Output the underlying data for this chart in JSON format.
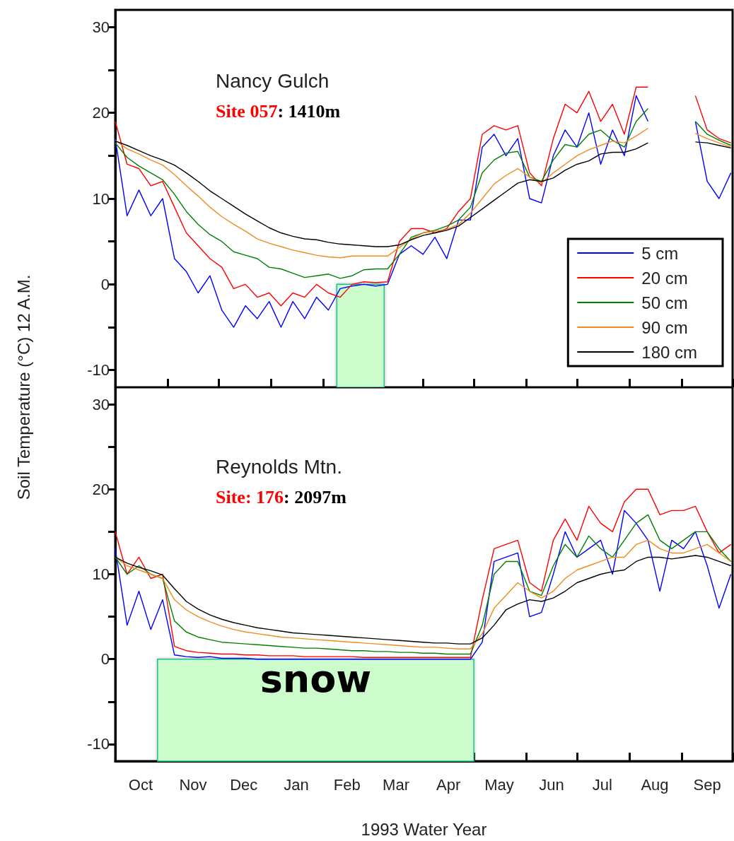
{
  "chart_data": [
    {
      "type": "line",
      "ylabel": "Soil Temperature (°C) 12 A.M.",
      "annotations": [
        "Nancy Gulch",
        "Site 057: 1410m"
      ],
      "x": [
        "1992-10-01",
        "1992-10-08",
        "1992-10-15",
        "1992-10-22",
        "1992-10-29",
        "1992-11-05",
        "1992-11-12",
        "1992-11-19",
        "1992-11-26",
        "1992-12-03",
        "1992-12-10",
        "1992-12-17",
        "1992-12-24",
        "1992-12-31",
        "1993-01-07",
        "1993-01-14",
        "1993-01-21",
        "1993-01-28",
        "1993-02-04",
        "1993-02-11",
        "1993-02-18",
        "1993-02-25",
        "1993-03-04",
        "1993-03-11",
        "1993-03-18",
        "1993-03-25",
        "1993-04-01",
        "1993-04-08",
        "1993-04-15",
        "1993-04-22",
        "1993-04-29",
        "1993-05-06",
        "1993-05-13",
        "1993-05-20",
        "1993-05-27",
        "1993-06-03",
        "1993-06-10",
        "1993-06-17",
        "1993-06-24",
        "1993-07-01",
        "1993-07-08",
        "1993-07-15",
        "1993-07-22",
        "1993-07-29",
        "1993-08-05",
        "1993-08-12",
        "1993-08-19",
        "1993-08-26",
        "1993-09-02",
        "1993-09-09",
        "1993-09-16",
        "1993-09-23",
        "1993-09-30"
      ],
      "series": [
        {
          "name": "5 cm",
          "color": "#0000ff",
          "values": [
            17.0,
            8.0,
            11.0,
            8.0,
            10.0,
            3.0,
            1.5,
            -1.0,
            1.0,
            -3.0,
            -5.0,
            -2.5,
            -4.0,
            -2.0,
            -5.0,
            -2.0,
            -4.0,
            -1.5,
            -3.0,
            -0.5,
            -0.2,
            0.0,
            -0.2,
            0.0,
            3.5,
            4.5,
            3.5,
            5.5,
            3.0,
            7.5,
            7.5,
            16.0,
            17.5,
            15.0,
            17.0,
            10.0,
            9.5,
            15.0,
            18.0,
            16.0,
            20.0,
            14.0,
            18.0,
            15.0,
            22.0,
            19.0,
            null,
            null,
            null,
            19.0,
            12.0,
            10.0,
            13.0
          ]
        },
        {
          "name": "20 cm",
          "color": "#ff0000",
          "values": [
            19.0,
            14.0,
            13.5,
            11.5,
            12.0,
            9.0,
            6.0,
            4.5,
            3.0,
            2.0,
            -0.5,
            0.0,
            -1.5,
            -1.0,
            -2.5,
            -1.0,
            -1.5,
            0.0,
            -1.0,
            -1.5,
            0.0,
            0.3,
            0.2,
            0.3,
            5.0,
            6.5,
            6.5,
            6.0,
            6.5,
            8.5,
            10.0,
            17.5,
            18.5,
            18.0,
            18.5,
            13.0,
            11.5,
            17.0,
            21.0,
            20.0,
            22.5,
            19.0,
            21.0,
            17.5,
            23.0,
            23.0,
            null,
            null,
            null,
            22.0,
            18.0,
            17.0,
            16.5
          ]
        },
        {
          "name": "50 cm",
          "color": "#008000",
          "values": [
            16.5,
            14.8,
            13.8,
            13.0,
            12.2,
            10.5,
            8.5,
            7.0,
            5.8,
            5.0,
            3.8,
            3.4,
            3.0,
            2.0,
            1.8,
            1.3,
            0.8,
            1.0,
            1.2,
            0.7,
            1.0,
            1.7,
            1.8,
            1.8,
            3.5,
            5.5,
            6.0,
            6.3,
            6.8,
            7.5,
            9.0,
            13.0,
            14.5,
            15.3,
            15.5,
            12.5,
            12.0,
            14.5,
            16.3,
            16.0,
            17.5,
            18.0,
            16.8,
            16.0,
            19.0,
            20.5,
            null,
            null,
            null,
            19.0,
            17.5,
            16.8,
            16.2
          ]
        },
        {
          "name": "90 cm",
          "color": "#f08c1e",
          "values": [
            16.8,
            15.8,
            15.2,
            14.5,
            13.9,
            12.8,
            11.5,
            10.3,
            9.0,
            7.9,
            7.0,
            6.2,
            5.3,
            4.8,
            4.4,
            4.0,
            3.7,
            3.4,
            3.2,
            3.1,
            3.3,
            3.3,
            3.3,
            3.3,
            4.3,
            5.3,
            6.0,
            6.2,
            6.4,
            7.0,
            8.3,
            10.0,
            11.7,
            12.7,
            13.5,
            12.5,
            11.8,
            13.0,
            14.0,
            15.0,
            15.7,
            16.2,
            16.7,
            16.5,
            17.3,
            18.2,
            null,
            null,
            null,
            17.6,
            17.0,
            16.5,
            16.0
          ]
        },
        {
          "name": "180 cm",
          "color": "#000000",
          "values": [
            16.7,
            16.2,
            15.6,
            15.0,
            14.5,
            13.9,
            13.0,
            12.0,
            10.9,
            10.0,
            9.1,
            8.2,
            7.4,
            6.6,
            6.0,
            5.6,
            5.3,
            5.2,
            4.9,
            4.7,
            4.6,
            4.5,
            4.4,
            4.4,
            4.6,
            5.2,
            5.7,
            6.0,
            6.3,
            6.8,
            7.8,
            8.8,
            9.8,
            10.8,
            11.8,
            12.2,
            12.0,
            12.4,
            13.3,
            14.0,
            14.4,
            15.2,
            15.4,
            15.4,
            15.8,
            16.5,
            null,
            null,
            null,
            16.6,
            16.5,
            16.2,
            15.9
          ]
        }
      ],
      "bands": [
        {
          "axis": "x",
          "from": "1993-02-09",
          "to": "1993-03-09",
          "color": "#ccfccc"
        }
      ],
      "xlim": [
        "1992-10-01",
        "1993-10-01"
      ],
      "xticks": [
        {
          "value": "1992-10-01",
          "label": null
        },
        {
          "value": "1992-11-01",
          "label": null
        },
        {
          "value": "1992-12-01",
          "label": null
        },
        {
          "value": "1993-01-01",
          "label": null
        },
        {
          "value": "1993-02-01",
          "label": null
        },
        {
          "value": "1993-03-01",
          "label": null
        },
        {
          "value": "1993-04-01",
          "label": null
        },
        {
          "value": "1993-05-01",
          "label": null
        },
        {
          "value": "1993-06-01",
          "label": null
        },
        {
          "value": "1993-07-01",
          "label": null
        },
        {
          "value": "1993-08-01",
          "label": null
        },
        {
          "value": "1993-09-01",
          "label": null
        },
        {
          "value": "1993-10-01",
          "label": null
        }
      ],
      "ylim": [
        -12,
        32
      ],
      "yticks": [
        -10,
        {
          "value": -5,
          "label": null
        },
        0,
        {
          "value": 5,
          "label": null
        },
        10,
        {
          "value": 15,
          "label": null
        },
        20,
        {
          "value": 25,
          "label": null
        },
        30
      ],
      "tick_labels": "y",
      "legend": "bottom right",
      "grid": false
    },
    {
      "type": "line",
      "xlabel": "1993 Water Year",
      "annotations": [
        "Reynolds Mtn.",
        "Site: 176: 2097m"
      ],
      "x": [
        "1992-10-01",
        "1992-10-08",
        "1992-10-15",
        "1992-10-22",
        "1992-10-29",
        "1992-11-05",
        "1992-11-12",
        "1992-11-19",
        "1992-11-26",
        "1992-12-03",
        "1992-12-10",
        "1992-12-17",
        "1992-12-24",
        "1992-12-31",
        "1993-01-07",
        "1993-01-14",
        "1993-01-21",
        "1993-01-28",
        "1993-02-04",
        "1993-02-11",
        "1993-02-18",
        "1993-02-25",
        "1993-03-04",
        "1993-03-11",
        "1993-03-18",
        "1993-03-25",
        "1993-04-01",
        "1993-04-08",
        "1993-04-15",
        "1993-04-22",
        "1993-04-29",
        "1993-05-06",
        "1993-05-13",
        "1993-05-20",
        "1993-05-27",
        "1993-06-03",
        "1993-06-10",
        "1993-06-17",
        "1993-06-24",
        "1993-07-01",
        "1993-07-08",
        "1993-07-15",
        "1993-07-22",
        "1993-07-29",
        "1993-08-05",
        "1993-08-12",
        "1993-08-19",
        "1993-08-26",
        "1993-09-02",
        "1993-09-09",
        "1993-09-16",
        "1993-09-23",
        "1993-09-30"
      ],
      "series": [
        {
          "color": "#0000ff",
          "values": [
            13.0,
            4.0,
            8.0,
            3.5,
            7.0,
            0.5,
            0.3,
            0.2,
            0.3,
            0.1,
            0.1,
            0.1,
            0.0,
            0.0,
            0.0,
            0.0,
            0.0,
            0.0,
            0.0,
            0.0,
            0.0,
            0.0,
            0.0,
            0.0,
            0.0,
            0.0,
            0.0,
            0.0,
            0.0,
            0.0,
            0.0,
            2.0,
            11.5,
            12.0,
            12.5,
            5.0,
            5.5,
            10.0,
            15.0,
            12.0,
            13.0,
            14.0,
            10.0,
            17.5,
            16.0,
            14.0,
            8.0,
            14.0,
            13.0,
            15.0,
            11.0,
            6.0,
            10.0
          ]
        },
        {
          "color": "#ff0000",
          "values": [
            15.0,
            10.0,
            12.0,
            9.5,
            10.0,
            1.5,
            1.0,
            0.8,
            0.7,
            0.6,
            0.6,
            0.5,
            0.5,
            0.4,
            0.4,
            0.4,
            0.3,
            0.3,
            0.3,
            0.3,
            0.3,
            0.2,
            0.2,
            0.2,
            0.2,
            0.2,
            0.2,
            0.2,
            0.2,
            0.2,
            0.2,
            7.0,
            13.0,
            13.5,
            14.0,
            9.0,
            8.0,
            14.0,
            16.5,
            14.0,
            18.0,
            16.0,
            15.0,
            18.5,
            20.0,
            20.0,
            17.0,
            17.5,
            17.5,
            18.0,
            15.0,
            12.5,
            13.5
          ]
        },
        {
          "color": "#008000",
          "values": [
            12.0,
            10.0,
            11.0,
            10.0,
            9.5,
            4.5,
            3.2,
            2.6,
            2.3,
            2.0,
            1.9,
            1.8,
            1.7,
            1.6,
            1.5,
            1.4,
            1.3,
            1.3,
            1.2,
            1.1,
            1.0,
            1.0,
            0.9,
            0.9,
            0.8,
            0.8,
            0.7,
            0.7,
            0.6,
            0.6,
            0.6,
            4.0,
            10.0,
            11.5,
            11.5,
            8.0,
            7.5,
            11.0,
            13.5,
            12.0,
            14.5,
            13.0,
            12.0,
            14.0,
            16.0,
            17.0,
            14.0,
            13.0,
            14.0,
            15.0,
            15.0,
            13.0,
            11.5
          ]
        },
        {
          "color": "#f08c1e",
          "values": [
            12.0,
            11.0,
            10.5,
            10.0,
            9.5,
            7.0,
            5.8,
            5.0,
            4.4,
            3.9,
            3.5,
            3.2,
            3.0,
            2.8,
            2.6,
            2.5,
            2.4,
            2.3,
            2.2,
            2.1,
            2.0,
            1.9,
            1.8,
            1.7,
            1.6,
            1.5,
            1.4,
            1.4,
            1.3,
            1.2,
            1.2,
            3.0,
            6.0,
            7.5,
            9.0,
            8.0,
            7.2,
            8.0,
            9.5,
            10.5,
            11.0,
            11.5,
            12.0,
            12.0,
            13.5,
            14.0,
            13.0,
            12.5,
            12.5,
            13.0,
            13.5,
            12.5,
            11.5
          ]
        },
        {
          "color": "#000000",
          "values": [
            12.0,
            11.3,
            10.8,
            10.4,
            9.9,
            8.3,
            6.8,
            5.9,
            5.2,
            4.7,
            4.3,
            4.0,
            3.7,
            3.5,
            3.3,
            3.1,
            3.0,
            2.9,
            2.8,
            2.7,
            2.6,
            2.5,
            2.4,
            2.3,
            2.2,
            2.1,
            2.0,
            1.9,
            1.9,
            1.8,
            1.8,
            2.5,
            4.0,
            5.8,
            6.5,
            7.0,
            6.8,
            7.2,
            8.0,
            9.0,
            9.5,
            10.0,
            10.3,
            10.5,
            11.5,
            12.0,
            12.0,
            11.8,
            12.0,
            12.2,
            12.0,
            11.5,
            11.0
          ]
        }
      ],
      "bands": [
        {
          "axis": "x",
          "from": "1992-10-26",
          "to": "1993-05-01",
          "label": "snow",
          "color": "#ccfccc"
        }
      ],
      "xlim": [
        "1992-10-01",
        "1993-10-01"
      ],
      "xticks": [
        {
          "value": "1992-10-01",
          "label": null
        },
        {
          "value": "1992-10-16",
          "label": "Oct"
        },
        {
          "value": "1992-11-01",
          "label": null
        },
        {
          "value": "1992-11-16",
          "label": "Nov"
        },
        {
          "value": "1992-12-01",
          "label": null
        },
        {
          "value": "1992-12-16",
          "label": "Dec"
        },
        {
          "value": "1993-01-01",
          "label": null
        },
        {
          "value": "1993-01-16",
          "label": "Jan"
        },
        {
          "value": "1993-02-01",
          "label": null
        },
        {
          "value": "1993-02-15",
          "label": "Feb"
        },
        {
          "value": "1993-03-01",
          "label": null
        },
        {
          "value": "1993-03-16",
          "label": "Mar"
        },
        {
          "value": "1993-04-01",
          "label": null
        },
        {
          "value": "1993-04-16",
          "label": "Apr"
        },
        {
          "value": "1993-05-01",
          "label": null
        },
        {
          "value": "1993-05-16",
          "label": "May"
        },
        {
          "value": "1993-06-01",
          "label": null
        },
        {
          "value": "1993-06-16",
          "label": "Jun"
        },
        {
          "value": "1993-07-01",
          "label": null
        },
        {
          "value": "1993-07-16",
          "label": "Jul"
        },
        {
          "value": "1993-08-01",
          "label": null
        },
        {
          "value": "1993-08-16",
          "label": "Aug"
        },
        {
          "value": "1993-09-01",
          "label": null
        },
        {
          "value": "1993-09-16",
          "label": "Sep"
        },
        {
          "value": "1993-10-01",
          "label": null
        }
      ],
      "ylim": [
        -12,
        32
      ],
      "yticks": [
        -10,
        {
          "value": -5,
          "label": null
        },
        0,
        {
          "value": 5,
          "label": null
        },
        10,
        {
          "value": 15,
          "label": null
        },
        20,
        {
          "value": 25,
          "label": null
        },
        30
      ],
      "grid": false
    }
  ]
}
